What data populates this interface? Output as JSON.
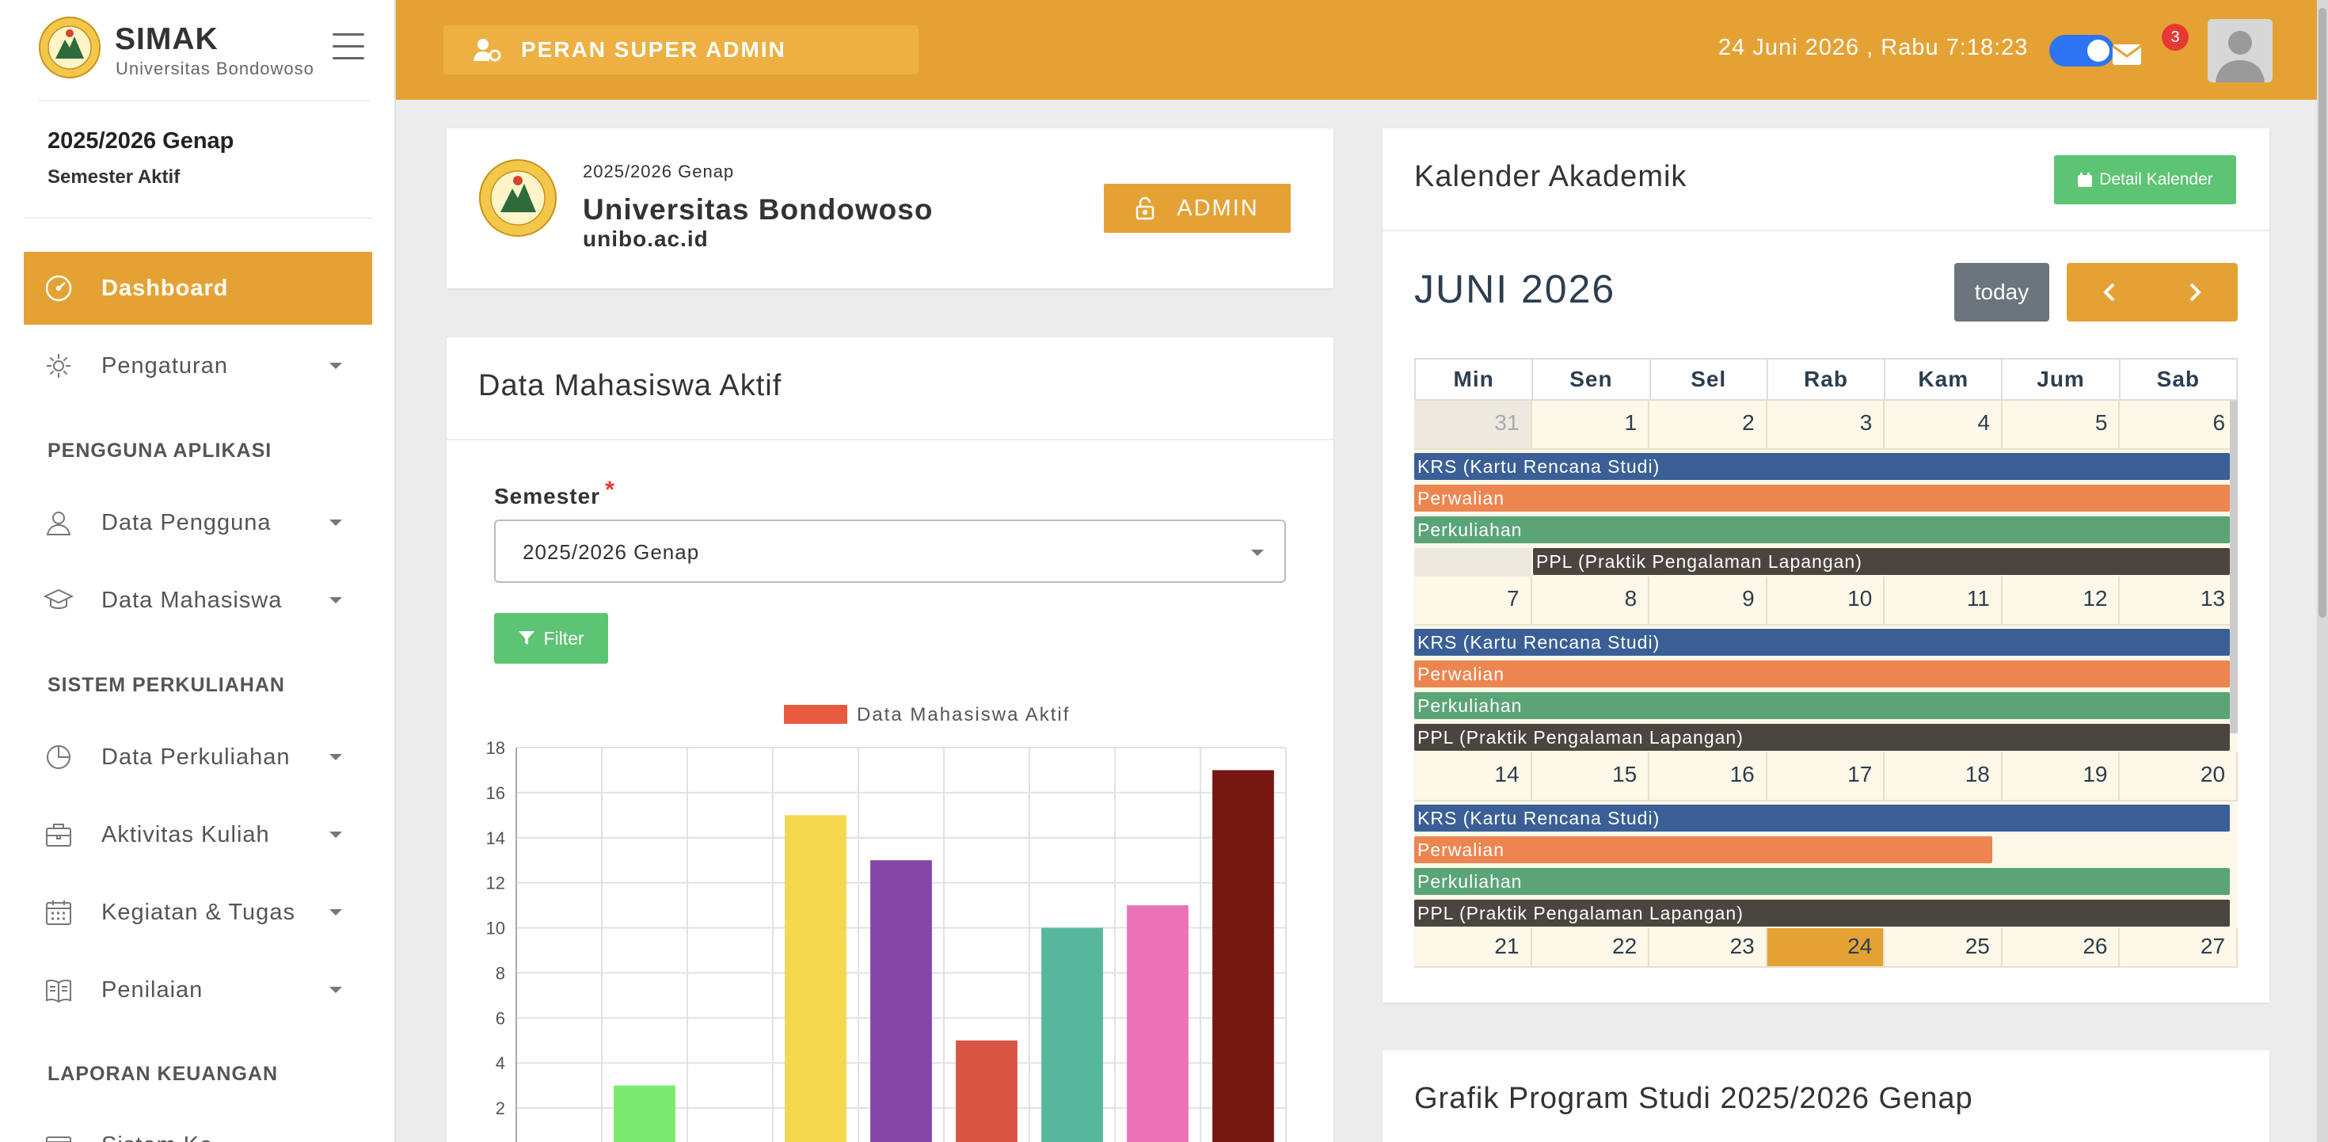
{
  "app": {
    "name": "SIMAK",
    "subtitle": "Universitas Bondowoso"
  },
  "sidebar": {
    "semester_year": "2025/2026 Genap",
    "semester_label": "Semester Aktif",
    "items": [
      {
        "label": "Dashboard",
        "icon": "gauge-icon",
        "active": true
      },
      {
        "label": "Pengaturan",
        "icon": "gear-icon"
      },
      {
        "label": "Data Pengguna",
        "icon": "user-icon"
      },
      {
        "label": "Data Mahasiswa",
        "icon": "graduation-cap-icon"
      },
      {
        "label": "Data Perkuliahan",
        "icon": "pie-chart-icon"
      },
      {
        "label": "Aktivitas Kuliah",
        "icon": "briefcase-icon"
      },
      {
        "label": "Kegiatan & Tugas",
        "icon": "calendar-icon"
      },
      {
        "label": "Penilaian",
        "icon": "book-icon"
      },
      {
        "label": "Sistem Ke...",
        "icon": "wallet-icon"
      }
    ],
    "sections": [
      "PENGGUNA APLIKASI",
      "SISTEM PERKULIAHAN",
      "LAPORAN KEUANGAN"
    ]
  },
  "topbar": {
    "role": "PERAN SUPER ADMIN",
    "datetime": "24 Juni 2026 , Rabu 7:18:23",
    "mail_count": "3",
    "accent": "#e5a234"
  },
  "university": {
    "semester": "2025/2026 Genap",
    "name": "Universitas Bondowoso",
    "domain": "unibo.ac.id",
    "admin_label": "ADMIN"
  },
  "mahasiswa": {
    "title": "Data Mahasiswa Aktif",
    "semester_label": "Semester",
    "semester_value": "2025/2026 Genap",
    "filter_label": "Filter"
  },
  "chart_data": {
    "type": "bar",
    "series": [
      {
        "name": "Data Mahasiswa Aktif",
        "values": [
          0,
          3,
          0,
          15,
          13,
          5,
          10,
          11,
          17
        ]
      }
    ],
    "colors": [
      "#7bea6e",
      "#7bea6e",
      "#7bea6e",
      "#f6d84f",
      "#8347a8",
      "#d95443",
      "#57b79a",
      "#ec72b6",
      "#761711"
    ],
    "ylim": [
      0,
      18
    ],
    "yticks": [
      0,
      2,
      4,
      6,
      8,
      10,
      12,
      14,
      16,
      18
    ],
    "legend_color": "#e85a40",
    "grid": true
  },
  "calendar": {
    "title": "Kalender Akademik",
    "detail_label": "Detail Kalender",
    "month": "JUNI 2026",
    "today_label": "today",
    "dow": [
      "Min",
      "Sen",
      "Sel",
      "Rab",
      "Kam",
      "Jum",
      "Sab"
    ],
    "weeks": [
      {
        "days": [
          "31",
          "1",
          "2",
          "3",
          "4",
          "5",
          "6"
        ],
        "other": [
          0
        ]
      },
      {
        "days": [
          "7",
          "8",
          "9",
          "10",
          "11",
          "12",
          "13"
        ],
        "other": []
      },
      {
        "days": [
          "14",
          "15",
          "16",
          "17",
          "18",
          "19",
          "20"
        ],
        "other": []
      },
      {
        "days": [
          "21",
          "22",
          "23",
          "24",
          "25",
          "26",
          "27"
        ],
        "other": [],
        "today": 3
      }
    ],
    "events": {
      "krs": {
        "label": "KRS (Kartu Rencana Studi)",
        "color": "#3a5f97"
      },
      "perwalian": {
        "label": "Perwalian",
        "color": "#ec8550"
      },
      "perkuliahan": {
        "label": "Perkuliahan",
        "color": "#5aa477"
      },
      "ppl": {
        "label": "PPL (Praktik Pengalaman Lapangan)",
        "color": "#4b4540"
      }
    }
  },
  "grafik": {
    "title": "Grafik Program Studi 2025/2026 Genap"
  }
}
